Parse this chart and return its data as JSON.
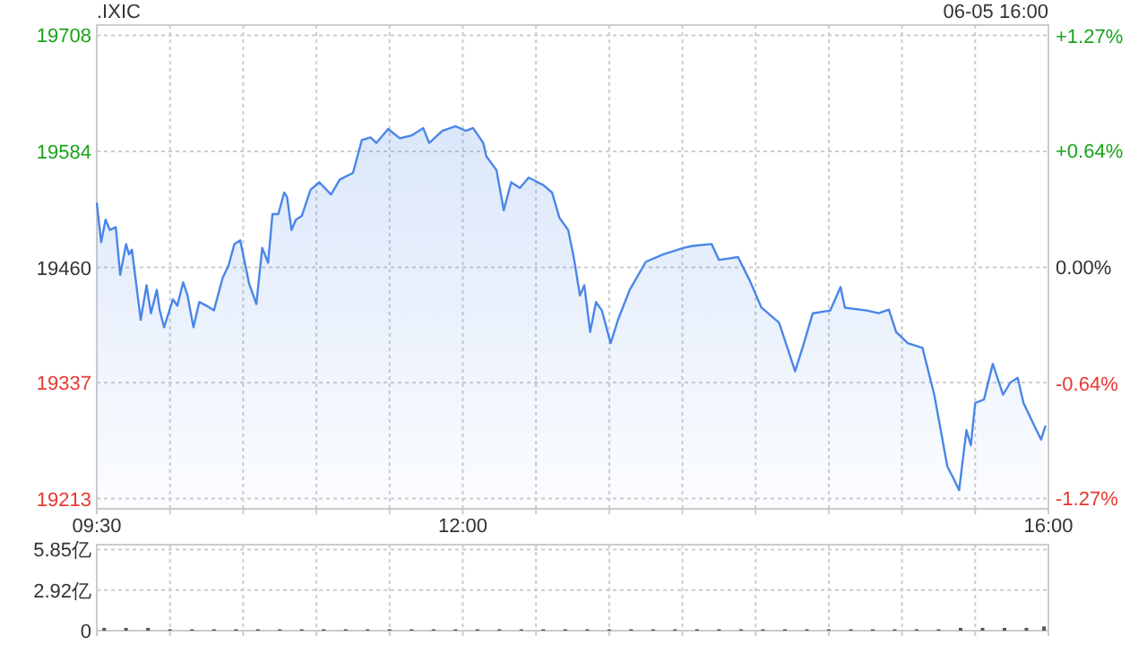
{
  "chart_data": [
    {
      "type": "area",
      "title": ".IXIC",
      "annotations": [
        "06-05 16:00"
      ],
      "grid": true,
      "marker": "none",
      "line_style": "solid",
      "x": [
        9.5,
        9.53,
        9.56,
        9.59,
        9.63,
        9.66,
        9.7,
        9.72,
        9.74,
        9.8,
        9.84,
        9.87,
        9.91,
        9.93,
        9.96,
        10.02,
        10.05,
        10.09,
        10.12,
        10.16,
        10.2,
        10.25,
        10.3,
        10.36,
        10.4,
        10.44,
        10.48,
        10.54,
        10.59,
        10.63,
        10.67,
        10.7,
        10.74,
        10.78,
        10.8,
        10.83,
        10.86,
        10.9,
        10.96,
        11.02,
        11.1,
        11.16,
        11.25,
        11.31,
        11.37,
        11.41,
        11.49,
        11.57,
        11.65,
        11.73,
        11.77,
        11.86,
        11.95,
        12.02,
        12.07,
        12.14,
        12.16,
        12.23,
        12.28,
        12.33,
        12.39,
        12.45,
        12.55,
        12.61,
        12.66,
        12.72,
        12.76,
        12.8,
        12.83,
        12.87,
        12.91,
        12.95,
        13.01,
        13.06,
        13.14,
        13.25,
        13.37,
        13.51,
        13.57,
        13.7,
        13.75,
        13.88,
        13.96,
        14.04,
        14.16,
        14.27,
        14.33,
        14.39,
        14.51,
        14.58,
        14.61,
        14.76,
        14.84,
        14.91,
        14.96,
        15.04,
        15.14,
        15.22,
        15.31,
        15.35,
        15.39,
        15.44,
        15.47,
        15.5,
        15.56,
        15.62,
        15.69,
        15.74,
        15.79,
        15.83,
        15.9,
        15.95,
        15.98
      ],
      "series": [
        {
          "color": "#4a86e8",
          "values": [
            19529,
            19487,
            19511,
            19500,
            19503,
            19452,
            19485,
            19474,
            19479,
            19404,
            19441,
            19411,
            19436,
            19414,
            19396,
            19426,
            19419,
            19444,
            19430,
            19396,
            19423,
            19419,
            19414,
            19449,
            19462,
            19485,
            19489,
            19443,
            19421,
            19481,
            19465,
            19517,
            19517,
            19540,
            19535,
            19500,
            19511,
            19515,
            19543,
            19551,
            19538,
            19554,
            19561,
            19596,
            19599,
            19593,
            19608,
            19598,
            19601,
            19609,
            19593,
            19606,
            19611,
            19606,
            19609,
            19593,
            19579,
            19564,
            19521,
            19551,
            19545,
            19556,
            19548,
            19540,
            19513,
            19500,
            19469,
            19430,
            19441,
            19391,
            19423,
            19414,
            19379,
            19404,
            19436,
            19466,
            19474,
            19481,
            19483,
            19485,
            19468,
            19471,
            19446,
            19417,
            19401,
            19349,
            19379,
            19411,
            19414,
            19439,
            19417,
            19414,
            19411,
            19415,
            19391,
            19379,
            19374,
            19324,
            19247,
            19235,
            19222,
            19286,
            19270,
            19315,
            19319,
            19357,
            19324,
            19337,
            19342,
            19315,
            19292,
            19276,
            19291
          ]
        }
      ],
      "xlim": [
        9.5,
        16
      ],
      "xticks": [
        {
          "value": 9.5,
          "label": "09:30"
        },
        {
          "value": 10,
          "label": null
        },
        {
          "value": 10.5,
          "label": null
        },
        {
          "value": 11,
          "label": null
        },
        {
          "value": 11.5,
          "label": null
        },
        {
          "value": 12,
          "label": "12:00"
        },
        {
          "value": 12.5,
          "label": null
        },
        {
          "value": 13,
          "label": null
        },
        {
          "value": 13.5,
          "label": null
        },
        {
          "value": 14,
          "label": null
        },
        {
          "value": 14.5,
          "label": null
        },
        {
          "value": 15,
          "label": null
        },
        {
          "value": 15.5,
          "label": null
        },
        {
          "value": 16,
          "label": "16:00"
        }
      ],
      "ylim": [
        19202,
        19719
      ],
      "yticks": [
        19213,
        19337,
        19460,
        19584,
        19708
      ],
      "y2lim": [
        -1.33,
        1.33
      ],
      "y2ticks": [
        {
          "value": -1.27,
          "label": "-1.27%"
        },
        {
          "value": -0.64,
          "label": "-0.64%"
        },
        {
          "value": 0,
          "label": "0.00%"
        },
        {
          "value": 0.64,
          "label": "+0.64%"
        },
        {
          "value": 1.27,
          "label": "+1.27%"
        }
      ]
    },
    {
      "type": "bar",
      "tick_labels": "y",
      "grid": true,
      "x": [
        9.55,
        9.7,
        9.85,
        10,
        10.15,
        10.3,
        10.45,
        10.6,
        10.75,
        10.9,
        11.05,
        11.2,
        11.35,
        11.5,
        11.65,
        11.8,
        11.95,
        12.1,
        12.25,
        12.4,
        12.55,
        12.7,
        12.85,
        13,
        13.15,
        13.3,
        13.45,
        13.6,
        13.75,
        13.9,
        14.05,
        14.2,
        14.35,
        14.5,
        14.65,
        14.8,
        14.95,
        15.1,
        15.25,
        15.4,
        15.55,
        15.7,
        15.85,
        15.97
      ],
      "series": [
        {
          "color": "#555555",
          "values": [
            0.2,
            0.2,
            0.2,
            0.1,
            0.1,
            0.1,
            0.1,
            0.1,
            0.1,
            0.1,
            0.1,
            0.1,
            0.1,
            0.1,
            0.1,
            0.1,
            0.1,
            0.1,
            0.1,
            0.1,
            0.1,
            0.1,
            0.1,
            0.1,
            0.1,
            0.1,
            0.1,
            0.1,
            0.1,
            0.1,
            0.1,
            0.1,
            0.1,
            0.1,
            0.1,
            0.1,
            0.1,
            0.1,
            0.1,
            0.2,
            0.2,
            0.2,
            0.2,
            0.3
          ]
        }
      ],
      "xlim": [
        9.5,
        16
      ],
      "xticks": [
        {
          "value": 9.5,
          "label": null
        },
        {
          "value": 10,
          "label": null
        },
        {
          "value": 10.5,
          "label": null
        },
        {
          "value": 11,
          "label": null
        },
        {
          "value": 11.5,
          "label": null
        },
        {
          "value": 12,
          "label": null
        },
        {
          "value": 12.5,
          "label": null
        },
        {
          "value": 13,
          "label": null
        },
        {
          "value": 13.5,
          "label": null
        },
        {
          "value": 14,
          "label": null
        },
        {
          "value": 14.5,
          "label": null
        },
        {
          "value": 15,
          "label": null
        },
        {
          "value": 15.5,
          "label": null
        },
        {
          "value": 16,
          "label": null
        }
      ],
      "ylim": [
        0,
        6.2
      ],
      "yticks": [
        0,
        {
          "value": 2.92,
          "label": "2.92亿"
        },
        {
          "value": 5.85,
          "label": "5.85亿"
        }
      ]
    }
  ]
}
